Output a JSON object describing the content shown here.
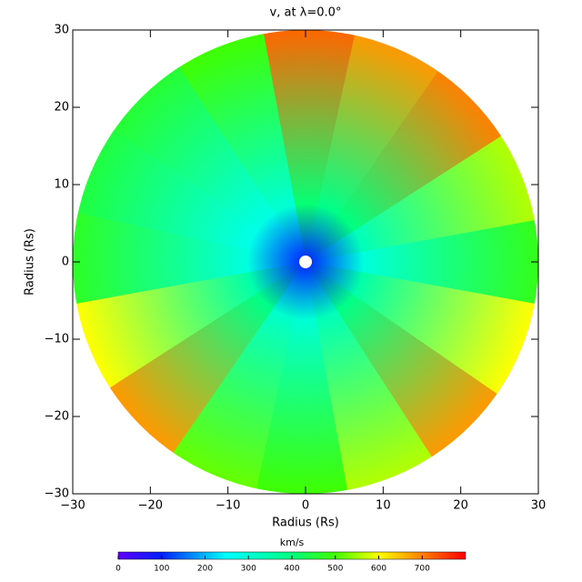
{
  "chart_data": {
    "type": "polar-heatmap",
    "title": "v, at λ=0.0°",
    "xlabel": "Radius (Rs)",
    "ylabel": "Radius (Rs)",
    "xlim": [
      -30,
      30
    ],
    "ylim": [
      -30,
      30
    ],
    "xticks": [
      {
        "value": -30,
        "label": "−30"
      },
      {
        "value": -20,
        "label": "−20"
      },
      {
        "value": -10,
        "label": "−10"
      },
      0,
      10,
      20,
      30
    ],
    "yticks": [
      {
        "value": -30,
        "label": "−30"
      },
      {
        "value": -20,
        "label": "−20"
      },
      {
        "value": -10,
        "label": "−10"
      },
      0,
      10,
      20,
      30
    ],
    "angles_deg": [
      0,
      22.5,
      45,
      67.5,
      90,
      112.5,
      135,
      157.5,
      180,
      202.5,
      225,
      247.5,
      270,
      292.5,
      315,
      337.5
    ],
    "center_value": 100,
    "values": [
      480,
      560,
      700,
      680,
      720,
      500,
      460,
      450,
      470,
      600,
      680,
      520,
      500,
      560,
      680,
      600
    ],
    "colormap": "rainbow",
    "colorbar": {
      "label": "km/s",
      "clim": [
        0,
        800
      ],
      "ticks": [
        0,
        100,
        200,
        300,
        400,
        500,
        600,
        700
      ]
    }
  }
}
